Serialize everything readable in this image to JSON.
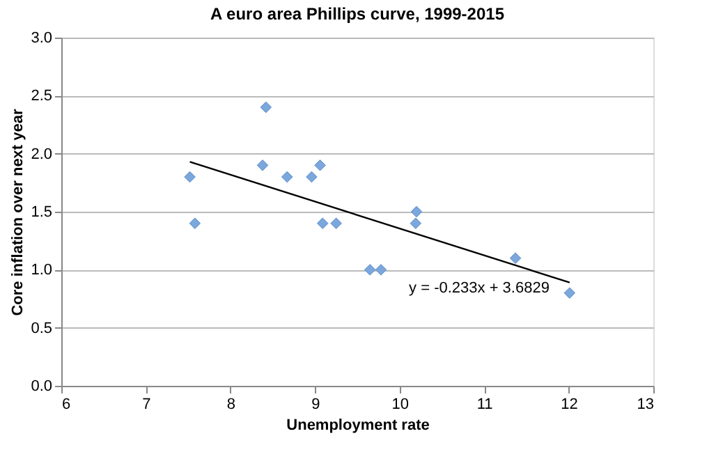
{
  "chart_data": {
    "type": "scatter",
    "title": "A euro area Phillips curve, 1999-2015",
    "xlabel": "Unemployment rate",
    "ylabel": "Core inflation over next year",
    "xlim": [
      6,
      13
    ],
    "xticks": [
      6,
      7,
      8,
      9,
      10,
      11,
      12,
      13
    ],
    "ylim": [
      0,
      3
    ],
    "yticks": [
      {
        "value": 0,
        "label": "0.0"
      },
      {
        "value": 0.5,
        "label": "0.5"
      },
      {
        "value": 1,
        "label": "1.0"
      },
      {
        "value": 1.5,
        "label": "1.5"
      },
      {
        "value": 2,
        "label": "2.0"
      },
      {
        "value": 2.5,
        "label": "2.5"
      },
      {
        "value": 3,
        "label": "3.0"
      }
    ],
    "grid": "y",
    "series": [
      {
        "color": "#7ba7dc",
        "marker": "diamond",
        "x": [
          7.52,
          7.58,
          8.42,
          8.38,
          8.67,
          8.96,
          9.06,
          9.09,
          9.25,
          9.65,
          9.78,
          10.2,
          10.19,
          11.37,
          12.01
        ],
        "values": [
          1.8,
          1.4,
          2.4,
          1.9,
          1.8,
          1.8,
          1.9,
          1.4,
          1.4,
          1.0,
          1.0,
          1.5,
          1.4,
          1.1,
          0.8
        ]
      },
      {
        "type": "line",
        "color": "#000000",
        "x": [
          7.52,
          12.01
        ],
        "values": [
          1.93,
          0.89
        ]
      }
    ],
    "annotations": [
      "y = -0.233x + 3.6829"
    ]
  }
}
